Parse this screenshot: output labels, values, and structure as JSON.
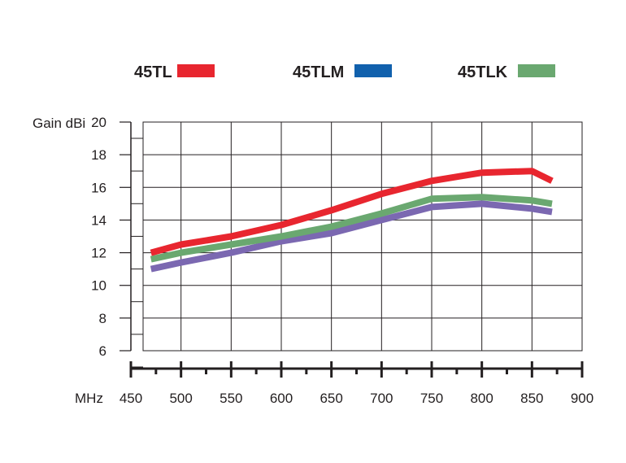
{
  "chart_data": {
    "type": "line",
    "x_unit_label": "MHz",
    "ylabel": "Gain dBi",
    "xlim": [
      450,
      900
    ],
    "ylim": [
      6,
      20
    ],
    "x_ticks": [
      450,
      500,
      550,
      600,
      650,
      700,
      750,
      800,
      850,
      900
    ],
    "y_ticks": [
      6,
      8,
      10,
      12,
      14,
      16,
      18,
      20
    ],
    "grid": true,
    "legend_position": "top",
    "series": [
      {
        "name": "45TL",
        "color": "#e8262f",
        "x": [
          470,
          500,
          550,
          600,
          650,
          700,
          750,
          800,
          850,
          870
        ],
        "values": [
          12.0,
          12.5,
          13.0,
          13.7,
          14.6,
          15.6,
          16.4,
          16.9,
          17.0,
          16.4
        ]
      },
      {
        "name": "45TLM",
        "color": "#7b68b1",
        "legend_color": "#1161ad",
        "x": [
          470,
          500,
          550,
          600,
          650,
          700,
          750,
          800,
          850,
          870
        ],
        "values": [
          11.0,
          11.4,
          12.0,
          12.7,
          13.2,
          14.0,
          14.8,
          15.0,
          14.7,
          14.5
        ]
      },
      {
        "name": "45TLK",
        "color": "#6aa870",
        "x": [
          470,
          500,
          550,
          600,
          650,
          700,
          750,
          800,
          850,
          870
        ],
        "values": [
          11.6,
          12.0,
          12.5,
          13.0,
          13.6,
          14.4,
          15.3,
          15.4,
          15.2,
          15.0
        ]
      }
    ]
  }
}
